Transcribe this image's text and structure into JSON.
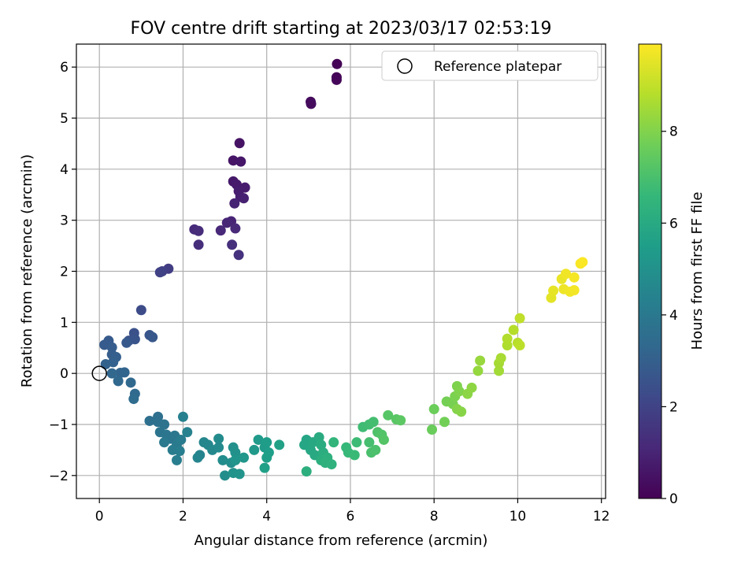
{
  "chart_data": {
    "type": "scatter",
    "title": "FOV centre drift starting at 2023/03/17 02:53:19",
    "xlabel": "Angular distance from reference (arcmin)",
    "ylabel": "Rotation from reference (arcmin)",
    "xlim": [
      -0.55,
      12.1
    ],
    "ylim": [
      -2.45,
      6.45
    ],
    "xticks": [
      0,
      2,
      4,
      6,
      8,
      10,
      12
    ],
    "yticks": [
      -2,
      -1,
      0,
      1,
      2,
      3,
      4,
      5,
      6
    ],
    "xtick_labels": [
      "0",
      "2",
      "4",
      "6",
      "8",
      "10",
      "12"
    ],
    "ytick_labels": [
      "−2",
      "−1",
      "0",
      "1",
      "2",
      "3",
      "4",
      "5",
      "6"
    ],
    "grid": true,
    "legend": {
      "position": "top-right",
      "entries": [
        "Reference platepar"
      ]
    },
    "reference_point": {
      "x": 0,
      "y": 0,
      "label": "Reference platepar"
    },
    "colorbar": {
      "label": "Hours from first FF file",
      "range": [
        0,
        9.9
      ],
      "ticks": [
        0,
        2,
        4,
        6,
        8
      ],
      "tick_labels": [
        "0",
        "2",
        "4",
        "6",
        "8"
      ],
      "colormap": [
        "#440154",
        "#482878",
        "#3e4989",
        "#31688e",
        "#26828e",
        "#1f9e89",
        "#35b779",
        "#6ece58",
        "#b5de2b",
        "#fde725"
      ]
    },
    "points": [
      {
        "x": 5.68,
        "y": 6.06,
        "t": 0.05
      },
      {
        "x": 5.67,
        "y": 5.8,
        "t": 0.1
      },
      {
        "x": 5.67,
        "y": 5.75,
        "t": 0.15
      },
      {
        "x": 5.05,
        "y": 5.32,
        "t": 0.25
      },
      {
        "x": 5.06,
        "y": 5.28,
        "t": 0.3
      },
      {
        "x": 3.35,
        "y": 4.51,
        "t": 0.5
      },
      {
        "x": 3.2,
        "y": 4.17,
        "t": 0.55
      },
      {
        "x": 3.38,
        "y": 4.15,
        "t": 0.6
      },
      {
        "x": 3.2,
        "y": 3.76,
        "t": 0.65
      },
      {
        "x": 3.28,
        "y": 3.7,
        "t": 0.7
      },
      {
        "x": 3.48,
        "y": 3.64,
        "t": 0.75
      },
      {
        "x": 3.33,
        "y": 3.57,
        "t": 0.8
      },
      {
        "x": 3.37,
        "y": 3.46,
        "t": 0.85
      },
      {
        "x": 3.45,
        "y": 3.43,
        "t": 0.9
      },
      {
        "x": 3.23,
        "y": 3.33,
        "t": 0.95
      },
      {
        "x": 3.15,
        "y": 2.98,
        "t": 1.0
      },
      {
        "x": 3.05,
        "y": 2.95,
        "t": 1.05
      },
      {
        "x": 2.9,
        "y": 2.8,
        "t": 1.1
      },
      {
        "x": 3.25,
        "y": 2.84,
        "t": 1.15
      },
      {
        "x": 2.27,
        "y": 2.82,
        "t": 1.2
      },
      {
        "x": 2.37,
        "y": 2.79,
        "t": 1.25
      },
      {
        "x": 2.37,
        "y": 2.52,
        "t": 1.3
      },
      {
        "x": 3.17,
        "y": 2.52,
        "t": 1.35
      },
      {
        "x": 3.33,
        "y": 2.32,
        "t": 1.4
      },
      {
        "x": 1.65,
        "y": 2.05,
        "t": 1.8
      },
      {
        "x": 1.5,
        "y": 2.0,
        "t": 1.9
      },
      {
        "x": 1.45,
        "y": 1.98,
        "t": 1.95
      },
      {
        "x": 1.0,
        "y": 1.24,
        "t": 2.3
      },
      {
        "x": 0.83,
        "y": 0.79,
        "t": 2.5
      },
      {
        "x": 0.7,
        "y": 0.64,
        "t": 2.55
      },
      {
        "x": 0.85,
        "y": 0.67,
        "t": 2.6
      },
      {
        "x": 1.2,
        "y": 0.75,
        "t": 2.65
      },
      {
        "x": 1.27,
        "y": 0.71,
        "t": 2.7
      },
      {
        "x": 0.65,
        "y": 0.6,
        "t": 2.75
      },
      {
        "x": 0.22,
        "y": 0.64,
        "t": 2.8
      },
      {
        "x": 0.12,
        "y": 0.56,
        "t": 2.85
      },
      {
        "x": 0.3,
        "y": 0.51,
        "t": 2.9
      },
      {
        "x": 0.3,
        "y": 0.37,
        "t": 2.95
      },
      {
        "x": 0.4,
        "y": 0.32,
        "t": 3.0
      },
      {
        "x": 0.33,
        "y": 0.22,
        "t": 3.05
      },
      {
        "x": 0.15,
        "y": 0.18,
        "t": 3.1
      },
      {
        "x": 0.5,
        "y": 0.01,
        "t": 3.15
      },
      {
        "x": 0.6,
        "y": 0.02,
        "t": 3.2
      },
      {
        "x": 0.3,
        "y": 0.0,
        "t": 3.25
      },
      {
        "x": 0.45,
        "y": -0.15,
        "t": 3.3
      },
      {
        "x": 0.75,
        "y": -0.18,
        "t": 3.35
      },
      {
        "x": 0.85,
        "y": -0.4,
        "t": 3.4
      },
      {
        "x": 0.82,
        "y": -0.5,
        "t": 3.45
      },
      {
        "x": 1.2,
        "y": -0.93,
        "t": 3.6
      },
      {
        "x": 1.4,
        "y": -0.85,
        "t": 3.65
      },
      {
        "x": 1.4,
        "y": -0.95,
        "t": 3.7
      },
      {
        "x": 1.55,
        "y": -1.0,
        "t": 3.75
      },
      {
        "x": 1.45,
        "y": -1.15,
        "t": 3.8
      },
      {
        "x": 1.6,
        "y": -1.2,
        "t": 3.85
      },
      {
        "x": 1.7,
        "y": -1.28,
        "t": 3.9
      },
      {
        "x": 1.8,
        "y": -1.22,
        "t": 3.95
      },
      {
        "x": 1.55,
        "y": -1.35,
        "t": 4.0
      },
      {
        "x": 1.85,
        "y": -1.4,
        "t": 4.05
      },
      {
        "x": 1.95,
        "y": -1.3,
        "t": 4.1
      },
      {
        "x": 1.75,
        "y": -1.5,
        "t": 4.15
      },
      {
        "x": 1.92,
        "y": -1.52,
        "t": 4.2
      },
      {
        "x": 1.85,
        "y": -1.7,
        "t": 4.25
      },
      {
        "x": 2.0,
        "y": -0.85,
        "t": 4.3
      },
      {
        "x": 2.1,
        "y": -1.15,
        "t": 4.35
      },
      {
        "x": 2.4,
        "y": -1.6,
        "t": 4.45
      },
      {
        "x": 2.35,
        "y": -1.65,
        "t": 4.5
      },
      {
        "x": 2.5,
        "y": -1.35,
        "t": 4.55
      },
      {
        "x": 2.6,
        "y": -1.4,
        "t": 4.6
      },
      {
        "x": 2.7,
        "y": -1.5,
        "t": 4.65
      },
      {
        "x": 2.85,
        "y": -1.45,
        "t": 4.7
      },
      {
        "x": 2.85,
        "y": -1.28,
        "t": 4.75
      },
      {
        "x": 2.95,
        "y": -1.7,
        "t": 4.8
      },
      {
        "x": 3.0,
        "y": -2.0,
        "t": 4.85
      },
      {
        "x": 3.15,
        "y": -1.75,
        "t": 4.9
      },
      {
        "x": 3.2,
        "y": -1.45,
        "t": 4.95
      },
      {
        "x": 3.25,
        "y": -1.55,
        "t": 5.0
      },
      {
        "x": 3.2,
        "y": -1.95,
        "t": 5.05
      },
      {
        "x": 3.35,
        "y": -1.97,
        "t": 5.1
      },
      {
        "x": 3.25,
        "y": -1.7,
        "t": 5.15
      },
      {
        "x": 3.45,
        "y": -1.65,
        "t": 5.2
      },
      {
        "x": 3.7,
        "y": -1.5,
        "t": 5.3
      },
      {
        "x": 3.8,
        "y": -1.3,
        "t": 5.35
      },
      {
        "x": 3.95,
        "y": -1.45,
        "t": 5.4
      },
      {
        "x": 4.0,
        "y": -1.35,
        "t": 5.45
      },
      {
        "x": 4.05,
        "y": -1.55,
        "t": 5.5
      },
      {
        "x": 4.0,
        "y": -1.65,
        "t": 5.55
      },
      {
        "x": 3.95,
        "y": -1.85,
        "t": 5.6
      },
      {
        "x": 4.3,
        "y": -1.4,
        "t": 5.65
      },
      {
        "x": 4.95,
        "y": -1.3,
        "t": 5.8
      },
      {
        "x": 4.9,
        "y": -1.4,
        "t": 5.85
      },
      {
        "x": 5.05,
        "y": -1.5,
        "t": 5.9
      },
      {
        "x": 5.1,
        "y": -1.35,
        "t": 5.95
      },
      {
        "x": 5.15,
        "y": -1.6,
        "t": 6.0
      },
      {
        "x": 5.25,
        "y": -1.25,
        "t": 6.05
      },
      {
        "x": 5.3,
        "y": -1.4,
        "t": 6.1
      },
      {
        "x": 5.35,
        "y": -1.55,
        "t": 6.15
      },
      {
        "x": 5.3,
        "y": -1.7,
        "t": 6.2
      },
      {
        "x": 5.45,
        "y": -1.65,
        "t": 6.25
      },
      {
        "x": 5.4,
        "y": -1.75,
        "t": 6.3
      },
      {
        "x": 5.55,
        "y": -1.78,
        "t": 6.35
      },
      {
        "x": 4.95,
        "y": -1.92,
        "t": 6.2
      },
      {
        "x": 5.6,
        "y": -1.35,
        "t": 6.45
      },
      {
        "x": 5.9,
        "y": -1.45,
        "t": 6.6
      },
      {
        "x": 5.95,
        "y": -1.55,
        "t": 6.65
      },
      {
        "x": 6.1,
        "y": -1.6,
        "t": 6.7
      },
      {
        "x": 6.15,
        "y": -1.35,
        "t": 6.75
      },
      {
        "x": 6.3,
        "y": -1.05,
        "t": 6.8
      },
      {
        "x": 6.45,
        "y": -1.0,
        "t": 6.85
      },
      {
        "x": 6.55,
        "y": -0.95,
        "t": 6.9
      },
      {
        "x": 6.45,
        "y": -1.35,
        "t": 6.95
      },
      {
        "x": 6.5,
        "y": -1.55,
        "t": 7.0
      },
      {
        "x": 6.6,
        "y": -1.5,
        "t": 7.05
      },
      {
        "x": 6.65,
        "y": -1.15,
        "t": 7.1
      },
      {
        "x": 6.75,
        "y": -1.2,
        "t": 7.15
      },
      {
        "x": 6.8,
        "y": -1.3,
        "t": 7.2
      },
      {
        "x": 6.9,
        "y": -0.82,
        "t": 7.25
      },
      {
        "x": 7.1,
        "y": -0.9,
        "t": 7.3
      },
      {
        "x": 7.2,
        "y": -0.92,
        "t": 7.35
      },
      {
        "x": 7.95,
        "y": -1.1,
        "t": 7.6
      },
      {
        "x": 8.0,
        "y": -0.7,
        "t": 7.65
      },
      {
        "x": 8.25,
        "y": -0.95,
        "t": 7.75
      },
      {
        "x": 8.3,
        "y": -0.55,
        "t": 7.8
      },
      {
        "x": 8.45,
        "y": -0.6,
        "t": 7.85
      },
      {
        "x": 8.5,
        "y": -0.45,
        "t": 7.9
      },
      {
        "x": 8.55,
        "y": -0.25,
        "t": 7.95
      },
      {
        "x": 8.6,
        "y": -0.35,
        "t": 8.0
      },
      {
        "x": 8.55,
        "y": -0.7,
        "t": 8.05
      },
      {
        "x": 8.65,
        "y": -0.75,
        "t": 8.1
      },
      {
        "x": 8.8,
        "y": -0.4,
        "t": 8.15
      },
      {
        "x": 8.9,
        "y": -0.28,
        "t": 8.2
      },
      {
        "x": 9.05,
        "y": 0.05,
        "t": 8.3
      },
      {
        "x": 9.1,
        "y": 0.25,
        "t": 8.35
      },
      {
        "x": 9.55,
        "y": 0.05,
        "t": 8.5
      },
      {
        "x": 9.55,
        "y": 0.2,
        "t": 8.55
      },
      {
        "x": 9.6,
        "y": 0.3,
        "t": 8.6
      },
      {
        "x": 9.75,
        "y": 0.55,
        "t": 8.7
      },
      {
        "x": 9.75,
        "y": 0.68,
        "t": 8.75
      },
      {
        "x": 9.9,
        "y": 0.85,
        "t": 8.8
      },
      {
        "x": 10.0,
        "y": 0.6,
        "t": 8.85
      },
      {
        "x": 10.05,
        "y": 0.55,
        "t": 8.9
      },
      {
        "x": 10.05,
        "y": 1.08,
        "t": 8.95
      },
      {
        "x": 10.8,
        "y": 1.48,
        "t": 9.5
      },
      {
        "x": 10.85,
        "y": 1.62,
        "t": 9.55
      },
      {
        "x": 11.05,
        "y": 1.85,
        "t": 9.6
      },
      {
        "x": 11.1,
        "y": 1.65,
        "t": 9.65
      },
      {
        "x": 11.15,
        "y": 1.95,
        "t": 9.7
      },
      {
        "x": 11.25,
        "y": 1.6,
        "t": 9.72
      },
      {
        "x": 11.35,
        "y": 1.63,
        "t": 9.75
      },
      {
        "x": 11.35,
        "y": 1.88,
        "t": 9.78
      },
      {
        "x": 11.5,
        "y": 2.15,
        "t": 9.82
      },
      {
        "x": 11.55,
        "y": 2.18,
        "t": 9.85
      }
    ]
  }
}
